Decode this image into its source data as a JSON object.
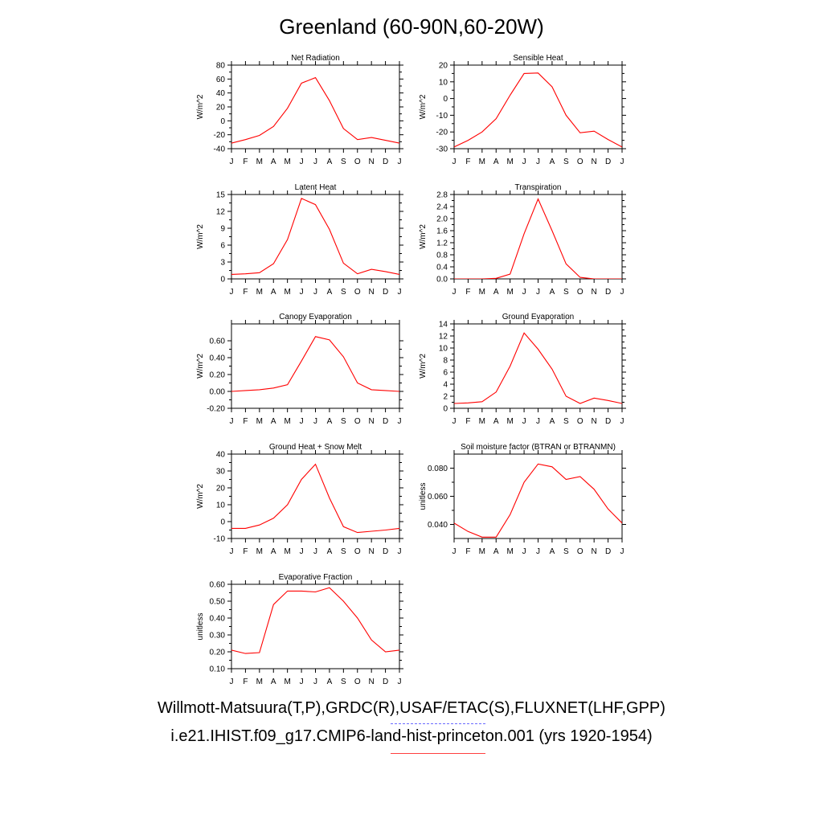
{
  "title": "Greenland (60-90N,60-20W)",
  "legend": {
    "observed": "Willmott-Matsuura(T,P),GRDC(R),USAF/ETAC(S),FLUXNET(LHF,GPP)",
    "model": "i.e21.IHIST.f09_g17.CMIP6-land-hist-princeton.001 (yrs 1920-1954)",
    "observed_color": "#6b6bff",
    "model_color": "#ff0000"
  },
  "chart_data": [
    {
      "type": "line",
      "title": "Net Radiation",
      "ylabel": "W/m^2",
      "ylim": [
        -40,
        80
      ],
      "yticks": [
        -40,
        -20,
        0,
        20,
        40,
        60,
        80
      ],
      "yticklabels": [
        "-40",
        "-20",
        "0",
        "20",
        "40",
        "60",
        "80"
      ],
      "categories": [
        "J",
        "F",
        "M",
        "A",
        "M",
        "J",
        "J",
        "A",
        "S",
        "O",
        "N",
        "D",
        "J"
      ],
      "values": [
        -32,
        -27,
        -21,
        -8,
        18,
        54,
        62,
        29,
        -11,
        -27,
        -24,
        -28,
        -32
      ]
    },
    {
      "type": "line",
      "title": "Sensible Heat",
      "ylabel": "W/m^2",
      "ylim": [
        -30,
        20
      ],
      "yticks": [
        -30,
        -20,
        -10,
        0,
        10,
        20
      ],
      "yticklabels": [
        "-30",
        "-20",
        "-10",
        "0",
        "10",
        "20"
      ],
      "categories": [
        "J",
        "F",
        "M",
        "A",
        "M",
        "J",
        "J",
        "A",
        "S",
        "O",
        "N",
        "D",
        "J"
      ],
      "values": [
        -29,
        -25,
        -20,
        -12,
        2,
        15,
        15.3,
        7,
        -10,
        -20.5,
        -19.5,
        -24.5,
        -29
      ]
    },
    {
      "type": "line",
      "title": "Latent Heat",
      "ylabel": "W/m^2",
      "ylim": [
        0,
        15
      ],
      "yticks": [
        0,
        3,
        6,
        9,
        12,
        15
      ],
      "yticklabels": [
        "0",
        "3",
        "6",
        "9",
        "12",
        "15"
      ],
      "categories": [
        "J",
        "F",
        "M",
        "A",
        "M",
        "J",
        "J",
        "A",
        "S",
        "O",
        "N",
        "D",
        "J"
      ],
      "values": [
        0.8,
        0.9,
        1.1,
        2.7,
        7,
        14.3,
        13.2,
        8.8,
        2.8,
        0.9,
        1.7,
        1.3,
        0.8
      ]
    },
    {
      "type": "line",
      "title": "Transpiration",
      "ylabel": "W/m^2",
      "ylim": [
        0,
        2.8
      ],
      "yticks": [
        0,
        0.4,
        0.8,
        1.2,
        1.6,
        2.0,
        2.4,
        2.8
      ],
      "yticklabels": [
        "0.0",
        "0.4",
        "0.8",
        "1.2",
        "1.6",
        "2.0",
        "2.4",
        "2.8"
      ],
      "categories": [
        "J",
        "F",
        "M",
        "A",
        "M",
        "J",
        "J",
        "A",
        "S",
        "O",
        "N",
        "D",
        "J"
      ],
      "values": [
        0,
        0,
        0,
        0.02,
        0.16,
        1.5,
        2.65,
        1.6,
        0.5,
        0.05,
        0,
        0,
        0
      ]
    },
    {
      "type": "line",
      "title": "Canopy Evaporation",
      "ylabel": "W/m^2",
      "ylim": [
        -0.2,
        0.8
      ],
      "yticks": [
        -0.2,
        0,
        0.2,
        0.4,
        0.6
      ],
      "yticklabels": [
        "-0.20",
        "0.00",
        "0.20",
        "0.40",
        "0.60"
      ],
      "categories": [
        "J",
        "F",
        "M",
        "A",
        "M",
        "J",
        "J",
        "A",
        "S",
        "O",
        "N",
        "D",
        "J"
      ],
      "values": [
        0,
        0.01,
        0.02,
        0.04,
        0.08,
        0.36,
        0.65,
        0.61,
        0.41,
        0.1,
        0.02,
        0.01,
        0
      ]
    },
    {
      "type": "line",
      "title": "Ground Evaporation",
      "ylabel": "W/m^2",
      "ylim": [
        0,
        14
      ],
      "yticks": [
        0,
        2,
        4,
        6,
        8,
        10,
        12,
        14
      ],
      "yticklabels": [
        "0",
        "2",
        "4",
        "6",
        "8",
        "10",
        "12",
        "14"
      ],
      "categories": [
        "J",
        "F",
        "M",
        "A",
        "M",
        "J",
        "J",
        "A",
        "S",
        "O",
        "N",
        "D",
        "J"
      ],
      "values": [
        0.8,
        0.9,
        1.1,
        2.7,
        7,
        12.5,
        9.8,
        6.5,
        2,
        0.8,
        1.7,
        1.3,
        0.8
      ]
    },
    {
      "type": "line",
      "title": "Ground Heat + Snow Melt",
      "ylabel": "W/m^2",
      "ylim": [
        -10,
        40
      ],
      "yticks": [
        -10,
        0,
        10,
        20,
        30,
        40
      ],
      "yticklabels": [
        "-10",
        "0",
        "10",
        "20",
        "30",
        "40"
      ],
      "categories": [
        "J",
        "F",
        "M",
        "A",
        "M",
        "J",
        "J",
        "A",
        "S",
        "O",
        "N",
        "D",
        "J"
      ],
      "values": [
        -4,
        -4,
        -2,
        2,
        10,
        25,
        34,
        14,
        -3,
        -6.5,
        -5.7,
        -5,
        -4
      ]
    },
    {
      "type": "line",
      "title": "Soil moisture factor (BTRAN or BTRANMN)",
      "ylabel": "unitless",
      "ylim": [
        0.03,
        0.09
      ],
      "yticks": [
        0.04,
        0.06,
        0.08
      ],
      "yticklabels": [
        "0.040",
        "0.060",
        "0.080"
      ],
      "categories": [
        "J",
        "F",
        "M",
        "A",
        "M",
        "J",
        "J",
        "A",
        "S",
        "O",
        "N",
        "D",
        "J"
      ],
      "values": [
        0.041,
        0.035,
        0.031,
        0.031,
        0.047,
        0.07,
        0.083,
        0.081,
        0.072,
        0.074,
        0.065,
        0.051,
        0.041
      ]
    },
    {
      "type": "line",
      "title": "Evaporative Fraction",
      "ylabel": "unitless",
      "ylim": [
        0.1,
        0.6
      ],
      "yticks": [
        0.1,
        0.2,
        0.3,
        0.4,
        0.5,
        0.6
      ],
      "yticklabels": [
        "0.10",
        "0.20",
        "0.30",
        "0.40",
        "0.50",
        "0.60"
      ],
      "categories": [
        "J",
        "F",
        "M",
        "A",
        "M",
        "J",
        "J",
        "A",
        "S",
        "O",
        "N",
        "D",
        "J"
      ],
      "values": [
        0.21,
        0.19,
        0.195,
        0.48,
        0.56,
        0.56,
        0.555,
        0.58,
        0.5,
        0.4,
        0.27,
        0.2,
        0.21
      ]
    }
  ]
}
